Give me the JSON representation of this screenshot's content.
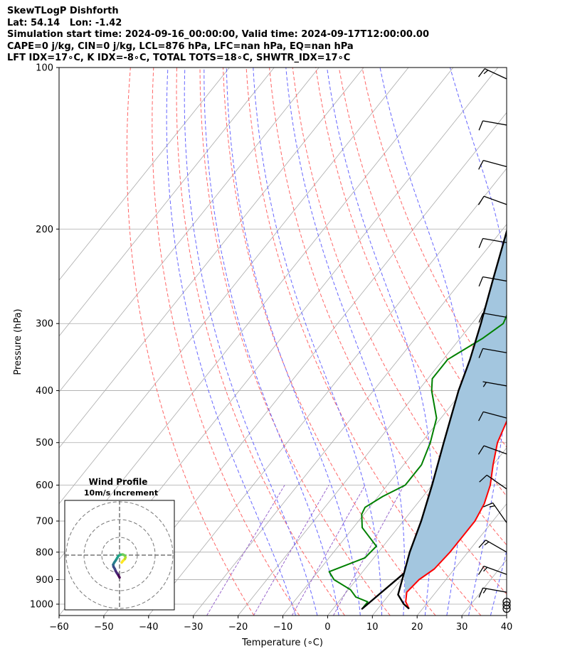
{
  "title_lines": [
    "SkewTLogP Dishforth",
    "Lat: 54.14   Lon: -1.42",
    "Simulation start time: 2024-09-16_00:00:00, Valid time: 2024-09-17T12:00:00.00",
    "CAPE=0 j/kg, CIN=0 j/kg, LCL=876 hPa, LFC=nan hPa, EQ=nan hPa",
    "LFT IDX=17∘C, K IDX=-8∘C, TOTAL TOTS=18∘C, SHWTR_IDX=17∘C"
  ],
  "chart_data": {
    "type": "line",
    "xlabel": "Temperature (∘C)",
    "ylabel": "Pressure (hPa)",
    "xlim": [
      -60,
      40
    ],
    "ylim": [
      1050,
      100
    ],
    "y_scale": "log",
    "x_ticks": [
      "−60",
      "−50",
      "−40",
      "−30",
      "−20",
      "−10",
      "0",
      "10",
      "20",
      "30",
      "40"
    ],
    "y_ticks": [
      "100",
      "200",
      "300",
      "400",
      "500",
      "600",
      "700",
      "800",
      "900",
      "1000"
    ],
    "colors": {
      "temperature": "#ff0000",
      "dewpoint": "#008000",
      "parcel": "#000000",
      "fill": "#a3c6df",
      "dry_adiabat": "#ff6666",
      "moist_adiabat": "#6666ff",
      "mixing_ratio": "#9966cc",
      "isotherm": "#aaaaaa"
    },
    "series": [
      {
        "key": "temperature",
        "points": [
          [
            17,
            1020
          ],
          [
            15,
            990
          ],
          [
            13.5,
            950
          ],
          [
            14,
            900
          ],
          [
            15.5,
            860
          ],
          [
            16,
            800
          ],
          [
            16,
            750
          ],
          [
            16,
            700
          ],
          [
            15,
            650
          ],
          [
            13,
            600
          ],
          [
            10,
            550
          ],
          [
            7,
            500
          ],
          [
            5,
            450
          ],
          [
            3,
            400
          ],
          [
            -2,
            350
          ],
          [
            -4,
            300
          ],
          [
            -6,
            250
          ],
          [
            -10,
            200
          ],
          [
            -14,
            175
          ],
          [
            -13,
            165
          ],
          [
            -11,
            160
          ],
          [
            -9,
            150
          ],
          [
            -9,
            140
          ],
          [
            -10,
            132
          ],
          [
            -9,
            125
          ],
          [
            -7,
            118
          ],
          [
            -1,
            110
          ],
          [
            3,
            100
          ]
        ]
      },
      {
        "key": "dewpoint",
        "points": [
          [
            6.5,
            1020
          ],
          [
            6.5,
            990
          ],
          [
            3,
            970
          ],
          [
            0.5,
            940
          ],
          [
            -5,
            900
          ],
          [
            -7.5,
            870
          ],
          [
            -2,
            820
          ],
          [
            -1.5,
            780
          ],
          [
            -8,
            720
          ],
          [
            -10.5,
            680
          ],
          [
            -11,
            660
          ],
          [
            -9,
            630
          ],
          [
            -6,
            600
          ],
          [
            -6,
            550
          ],
          [
            -8,
            500
          ],
          [
            -11,
            450
          ],
          [
            -17,
            400
          ],
          [
            -19,
            380
          ],
          [
            -19,
            350
          ],
          [
            -15,
            320
          ],
          [
            -13,
            300
          ],
          [
            -15,
            270
          ],
          [
            -17,
            250
          ],
          [
            -20,
            220
          ],
          [
            -24,
            200
          ],
          [
            -27,
            175
          ],
          [
            -27,
            160
          ],
          [
            -25,
            150
          ],
          [
            -21,
            140
          ],
          [
            -19,
            130
          ],
          [
            -18,
            120
          ],
          [
            -17,
            113
          ],
          [
            -18,
            106
          ],
          [
            -17,
            100
          ]
        ]
      },
      {
        "key": "parcel",
        "points": [
          [
            17,
            1020
          ],
          [
            15,
            1000
          ],
          [
            12,
            960
          ],
          [
            9.5,
            876
          ],
          [
            6.5,
            1020
          ],
          [
            9.5,
            876
          ],
          [
            7,
            800
          ],
          [
            4,
            700
          ],
          [
            0,
            600
          ],
          [
            -5,
            500
          ],
          [
            -11,
            400
          ],
          [
            -14,
            350
          ],
          [
            -18,
            300
          ],
          [
            -23,
            250
          ],
          [
            -29,
            200
          ],
          [
            -33,
            175
          ],
          [
            -36,
            150
          ],
          [
            -39,
            130
          ],
          [
            -41,
            115
          ],
          [
            -42,
            100
          ]
        ]
      }
    ],
    "wind_barbs": [
      {
        "p": 105,
        "speed_kt": 15,
        "dir_deg": 295
      },
      {
        "p": 128,
        "speed_kt": 10,
        "dir_deg": 280
      },
      {
        "p": 153,
        "speed_kt": 10,
        "dir_deg": 285
      },
      {
        "p": 180,
        "speed_kt": 10,
        "dir_deg": 290
      },
      {
        "p": 212,
        "speed_kt": 10,
        "dir_deg": 280
      },
      {
        "p": 250,
        "speed_kt": 10,
        "dir_deg": 280
      },
      {
        "p": 292,
        "speed_kt": 10,
        "dir_deg": 280
      },
      {
        "p": 340,
        "speed_kt": 10,
        "dir_deg": 280
      },
      {
        "p": 392,
        "speed_kt": 5,
        "dir_deg": 280
      },
      {
        "p": 450,
        "speed_kt": 10,
        "dir_deg": 285
      },
      {
        "p": 525,
        "speed_kt": 10,
        "dir_deg": 290
      },
      {
        "p": 610,
        "speed_kt": 10,
        "dir_deg": 305
      },
      {
        "p": 705,
        "speed_kt": 15,
        "dir_deg": 325
      },
      {
        "p": 800,
        "speed_kt": 15,
        "dir_deg": 300
      },
      {
        "p": 880,
        "speed_kt": 15,
        "dir_deg": 290
      },
      {
        "p": 950,
        "speed_kt": 15,
        "dir_deg": 280
      },
      {
        "p": 990,
        "speed_kt": 0,
        "dir_deg": 0
      },
      {
        "p": 1005,
        "speed_kt": 0,
        "dir_deg": 0
      },
      {
        "p": 1020,
        "speed_kt": 0,
        "dir_deg": 0
      }
    ],
    "hodograph": {
      "title": "Wind Profile",
      "subtitle": "10m/s increment",
      "ring_step_ms": 10,
      "rings": 3,
      "points": [
        [
          1,
          -3.5
        ],
        [
          1.5,
          -2.8
        ],
        [
          2.5,
          -1.8
        ],
        [
          2.8,
          -1.0
        ],
        [
          2.5,
          -0.2
        ],
        [
          1.5,
          0.3
        ],
        [
          0.5,
          0.2
        ],
        [
          -0.5,
          -0.3
        ],
        [
          -1.2,
          -1.5
        ],
        [
          -1.8,
          -2.5
        ],
        [
          -2.5,
          -3.5
        ],
        [
          -3,
          -4.5
        ],
        [
          -2.8,
          -5.5
        ],
        [
          -2.2,
          -6.5
        ],
        [
          -1.8,
          -7.5
        ],
        [
          -1.2,
          -8.5
        ],
        [
          -0.5,
          -9.5
        ],
        [
          0,
          -10.5
        ]
      ],
      "colormap": [
        "#fde725",
        "#b5de2b",
        "#6ece58",
        "#35b779",
        "#1f9e89",
        "#26828e",
        "#31688e",
        "#3e4989",
        "#482878",
        "#440154"
      ]
    }
  }
}
